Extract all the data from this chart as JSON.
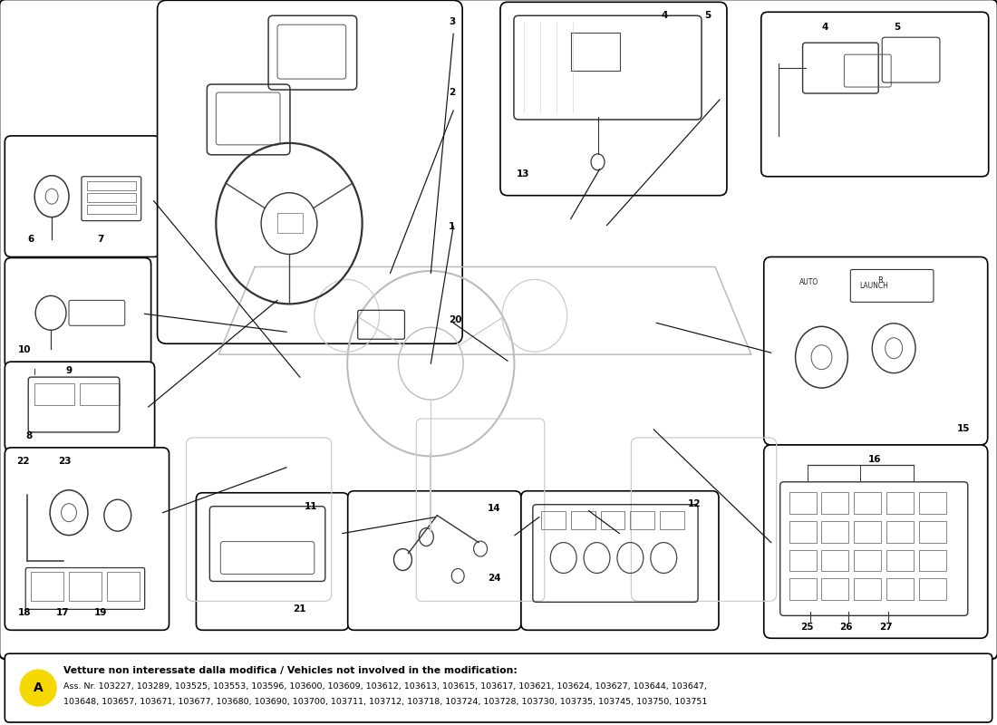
{
  "bg_color": "#ffffff",
  "fig_width": 11.0,
  "fig_height": 8.0,
  "dpi": 100,
  "footnote_bold": "Vetture non interessate dalla modifica / Vehicles not involved in the modification:",
  "footnote_line1": "Ass. Nr. 103227, 103289, 103525, 103553, 103596, 103600, 103609, 103612, 103613, 103615, 103617, 103621, 103624, 103627, 103644, 103647,",
  "footnote_line2": "103648, 103657, 103671, 103677, 103680, 103690, 103700, 103711, 103712, 103718, 103724, 103728, 103730, 103735, 103745, 103750, 103751",
  "circle_A_color": "#f5d800",
  "wm_color": "#d4a800",
  "wm_alpha": 0.13,
  "wm_size": 32
}
